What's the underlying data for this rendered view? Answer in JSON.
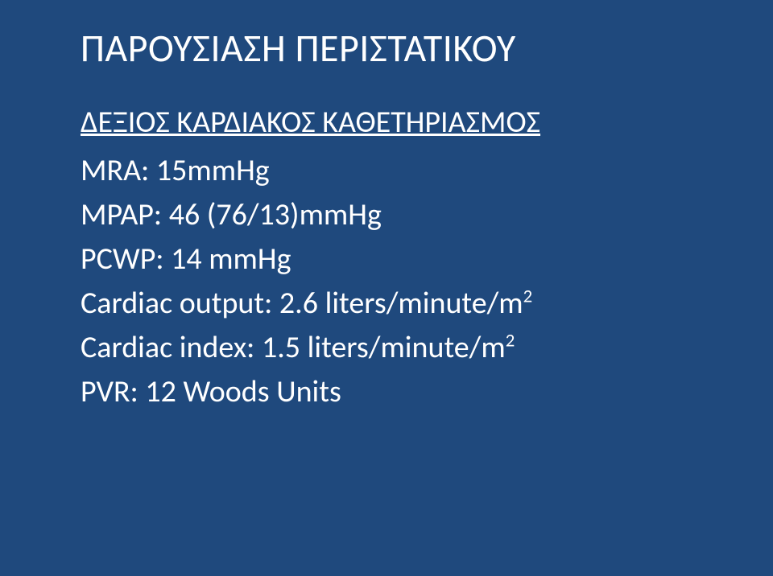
{
  "slide": {
    "background_color": "#1f497d",
    "text_color": "#ffffff",
    "title_fontsize": 48,
    "body_fontsize": 38,
    "font_family": "Calibri",
    "title": "ΠΑΡΟΥΣΙΑΣΗ ΠΕΡΙΣΤΑΤΙΚΟΥ",
    "section_heading": "ΔΕΞΙΟΣ ΚΑΡΔΙΑΚΟΣ ΚΑΘΕΤΗΡΙΑΣΜΟΣ",
    "lines": {
      "mra": "MRA: 15mmHg",
      "mpap": "MPAP: 46 (76/13)mmHg",
      "pcwp": "PCWP: 14 mmHg",
      "cardiac_output_pre": "Cardiac output: 2.6 liters/minute/m",
      "cardiac_output_sup": "2",
      "cardiac_index_pre": "Cardiac index: 1.5 liters/minute/m",
      "cardiac_index_sup": "2",
      "pvr": "PVR: 12 Woods Units"
    }
  }
}
